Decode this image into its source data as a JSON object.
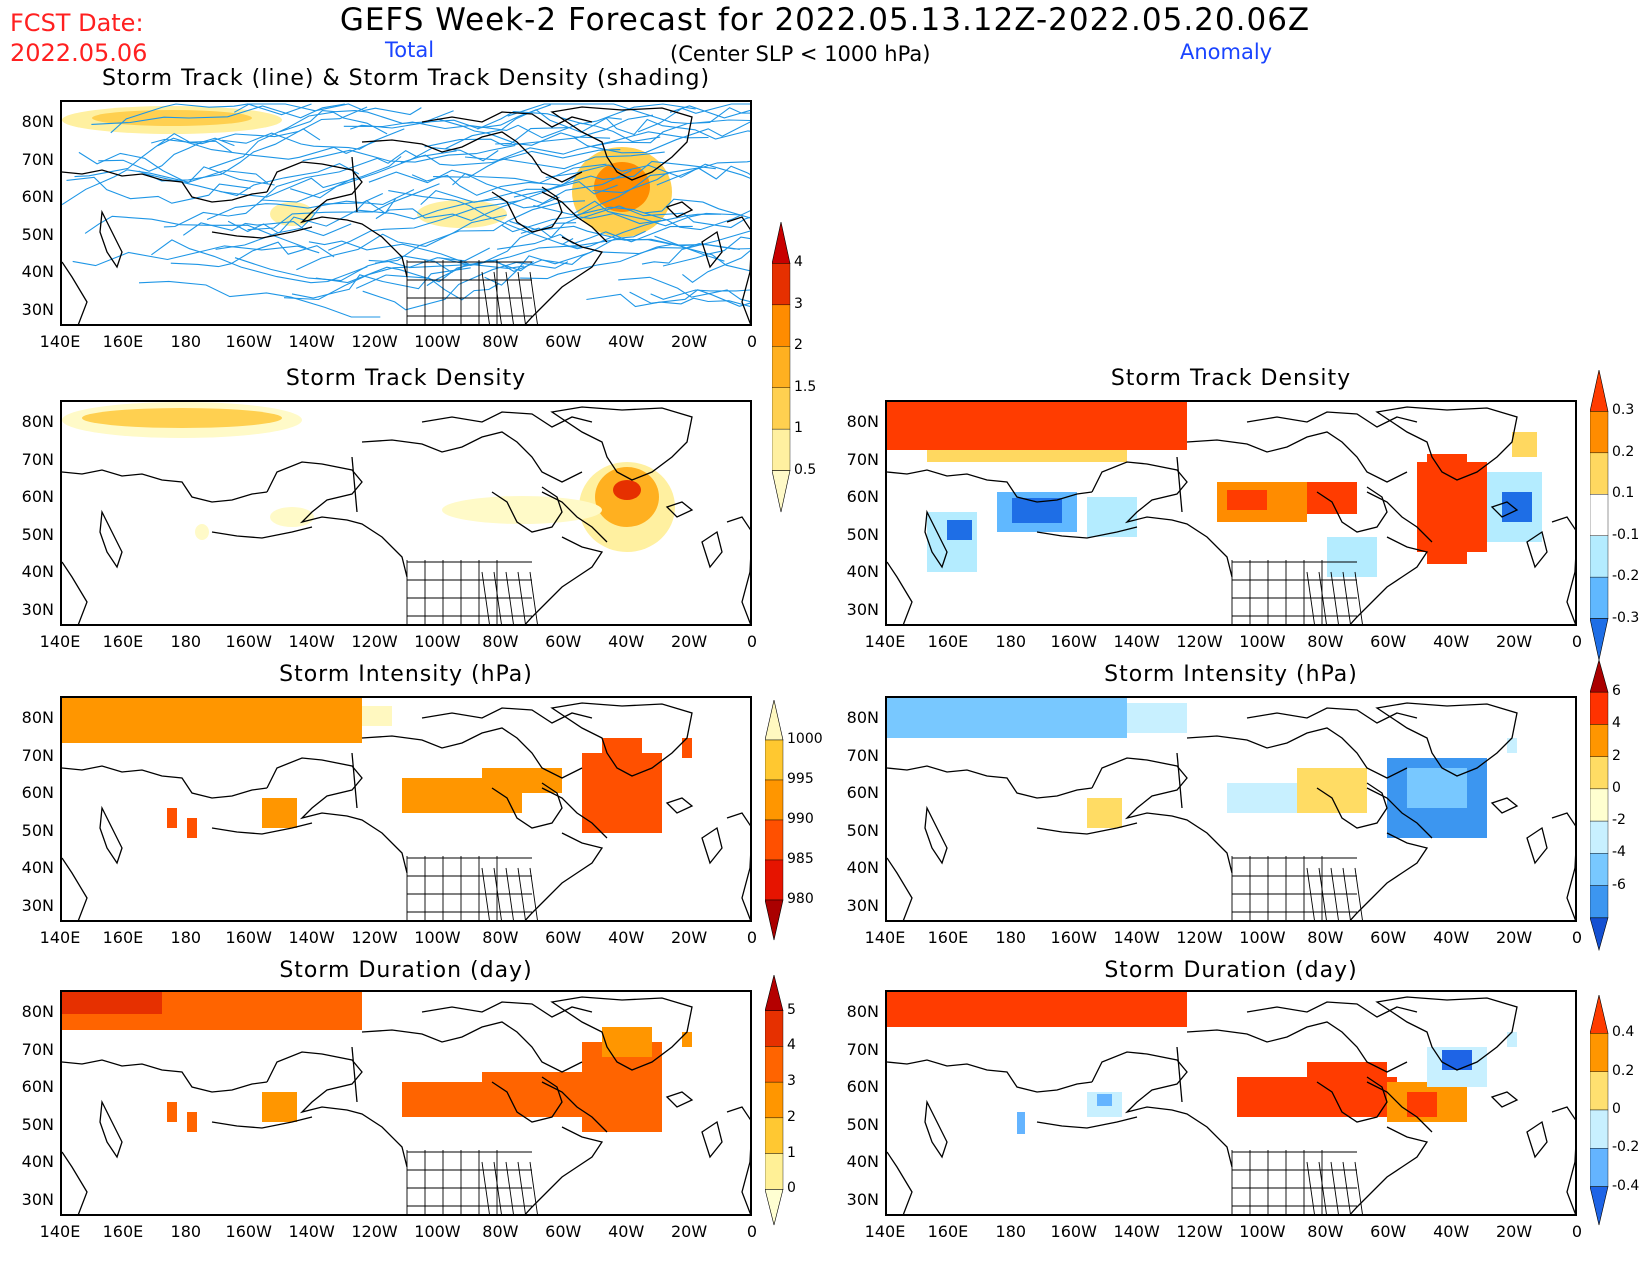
{
  "header": {
    "fcst_label": "FCST Date:",
    "fcst_date": "2022.05.06",
    "title": "GEFS Week-2 Forecast for 2022.05.13.12Z-2022.05.20.06Z",
    "subtitle": "(Center SLP < 1000 hPa)",
    "left_column": "Total",
    "right_column": "Anomaly"
  },
  "axes": {
    "lon_labels": [
      "140E",
      "160E",
      "180",
      "160W",
      "140W",
      "120W",
      "100W",
      "80W",
      "60W",
      "40W",
      "20W",
      "0"
    ],
    "lat_labels": [
      "80N",
      "70N",
      "60N",
      "50N",
      "40N",
      "30N"
    ]
  },
  "panels": {
    "track_total": {
      "title": "Storm Track (line) & Storm Track Density (shading)"
    },
    "density_total": {
      "title": "Storm Track Density"
    },
    "density_anom": {
      "title": "Storm Track Density"
    },
    "intensity_total": {
      "title": "Storm Intensity (hPa)"
    },
    "intensity_anom": {
      "title": "Storm Intensity (hPa)"
    },
    "duration_total": {
      "title": "Storm Duration (day)"
    },
    "duration_anom": {
      "title": "Storm Duration (day)"
    }
  },
  "colorbars": {
    "density_total": {
      "labels": [
        "4",
        "3",
        "2",
        "1.5",
        "1",
        "0.5"
      ],
      "colors": [
        "#c80000",
        "#e63000",
        "#ff8c00",
        "#ffb020",
        "#ffd050",
        "#fff0a0",
        "#fffac8"
      ]
    },
    "density_anom": {
      "labels": [
        "0.3",
        "0.2",
        "0.1",
        "-0.1",
        "-0.2",
        "-0.3"
      ],
      "colors": [
        "#ff3c00",
        "#ff8c00",
        "#ffd860",
        "#ffffff",
        "#b4ecff",
        "#60b8ff",
        "#1e6ee6"
      ]
    },
    "intensity_total": {
      "labels": [
        "1000",
        "995",
        "990",
        "985",
        "980"
      ],
      "colors": [
        "#fff8c0",
        "#ffc830",
        "#ff9600",
        "#ff5000",
        "#e61400",
        "#aa0000"
      ]
    },
    "intensity_anom": {
      "labels": [
        "6",
        "4",
        "2",
        "0",
        "-2",
        "-4",
        "-6"
      ],
      "colors": [
        "#aa0000",
        "#ff3200",
        "#ff9600",
        "#ffdc64",
        "#ffffd0",
        "#c8f0ff",
        "#78c8ff",
        "#3c96f0",
        "#1450d2"
      ]
    },
    "duration_total": {
      "labels": [
        "5",
        "4",
        "3",
        "2",
        "1",
        "0"
      ],
      "colors": [
        "#b40000",
        "#e63000",
        "#ff6400",
        "#ff9600",
        "#ffc832",
        "#fff096",
        "#ffffd2"
      ]
    },
    "duration_anom": {
      "labels": [
        "0.4",
        "0.2",
        "0",
        "-0.2",
        "-0.4"
      ],
      "colors": [
        "#ff3c00",
        "#ff9600",
        "#ffe070",
        "#c8f0ff",
        "#64b4ff",
        "#1e64e6"
      ]
    }
  }
}
